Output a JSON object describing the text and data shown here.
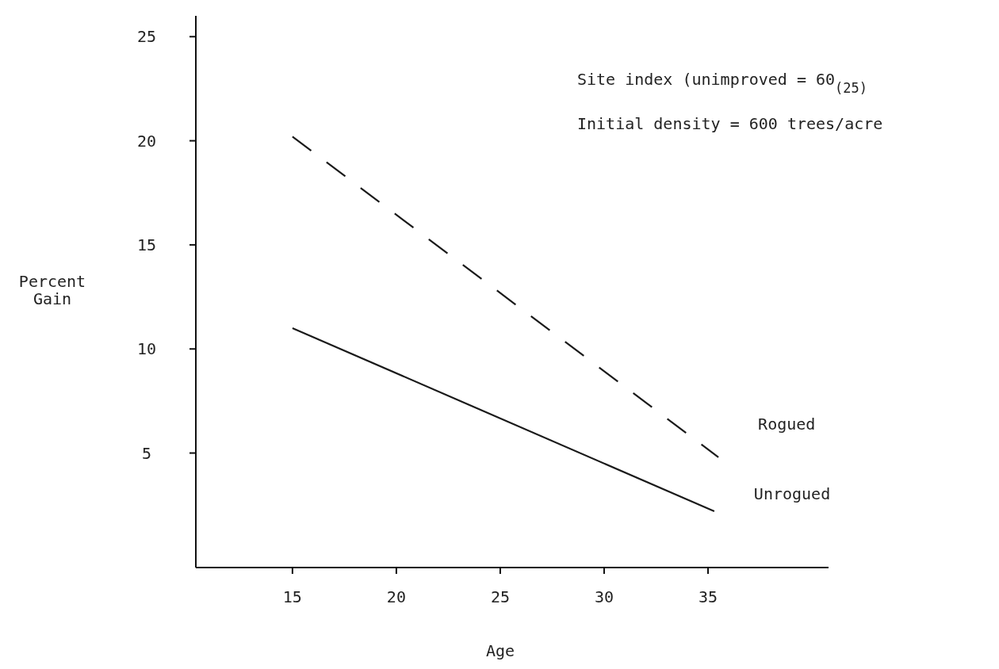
{
  "chart_data": {
    "type": "line",
    "xlabel": "Age",
    "ylabel": "Percent Gain",
    "xlim": [
      10.35,
      40.8
    ],
    "ylim": [
      -0.5,
      26
    ],
    "xticks": [
      15,
      20,
      25,
      30,
      35
    ],
    "yticks": [
      5,
      10,
      15,
      20,
      25
    ],
    "grid": false,
    "marker": "none",
    "annotations": [
      "Site index (unimproved = 60$_{(25)}$",
      "Initial density = 600 trees/acre"
    ],
    "series": [
      {
        "name": "Rogued",
        "color": "#1a1a1a",
        "line_style": "dashed",
        "x": [
          15,
          35.5
        ],
        "values": [
          20.2,
          4.8
        ]
      },
      {
        "name": "Unrogued",
        "color": "#1a1a1a",
        "line_style": "solid",
        "x": [
          15,
          35.3
        ],
        "values": [
          11,
          2.2
        ]
      }
    ]
  }
}
